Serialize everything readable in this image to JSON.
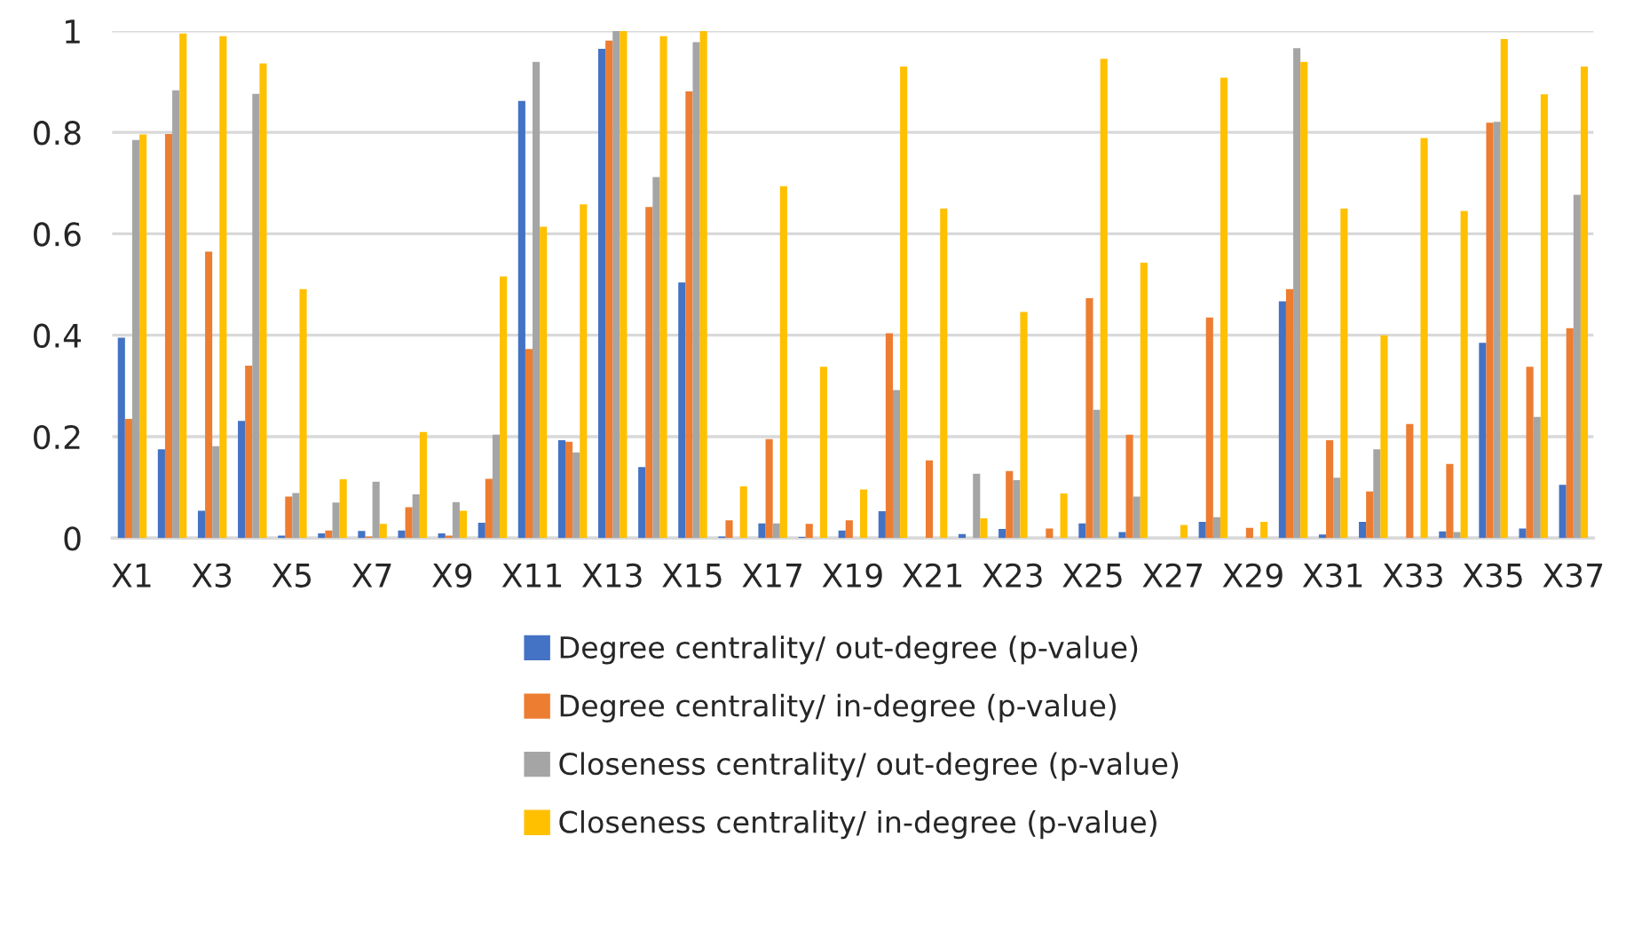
{
  "chart_data": {
    "type": "bar",
    "categories": [
      "X1",
      null,
      "X3",
      null,
      "X5",
      null,
      "X7",
      null,
      "X9",
      null,
      "X11",
      null,
      "X13",
      null,
      "X15",
      null,
      "X17",
      null,
      "X19",
      null,
      "X21",
      null,
      "X23",
      null,
      "X25",
      null,
      "X27",
      null,
      "X29",
      null,
      "X31",
      null,
      "X33",
      null,
      "X35",
      null,
      "X37"
    ],
    "series": [
      {
        "name": "Degree centrality/ out-degree (p-value)",
        "color": "#4472c4",
        "values": [
          0.395,
          0.175,
          0.054,
          0.231,
          0.005,
          0.009,
          0.014,
          0.015,
          0.009,
          0.03,
          0.862,
          0.193,
          0.965,
          0.14,
          0.504,
          0.003,
          0.029,
          0.002,
          0.015,
          0.053,
          0,
          0.008,
          0.018,
          0,
          0.029,
          0.012,
          0,
          0.032,
          0,
          0.467,
          0.007,
          0.032,
          0,
          0.013,
          0.385,
          0.019,
          0.105
        ]
      },
      {
        "name": "Degree centrality/ in-degree (p-value)",
        "color": "#ed7d31",
        "values": [
          0.235,
          0.797,
          0.565,
          0.34,
          0.082,
          0.015,
          0.003,
          0.061,
          0.005,
          0.117,
          0.373,
          0.19,
          0.981,
          0.653,
          0.881,
          0.035,
          0.195,
          0.028,
          0.035,
          0.404,
          0.153,
          0,
          0.132,
          0.019,
          0.473,
          0.204,
          0,
          0.435,
          0.02,
          0.491,
          0.193,
          0.092,
          0.225,
          0.146,
          0.819,
          0.338,
          0.414
        ]
      },
      {
        "name": "Closeness centrality/ out-degree (p-value)",
        "color": "#a5a5a5",
        "values": [
          0.785,
          0.883,
          0.181,
          0.876,
          0.089,
          0.07,
          0.111,
          0.086,
          0.071,
          0.204,
          0.939,
          0.169,
          1.0,
          0.712,
          0.978,
          null,
          0.029,
          0,
          0,
          0.292,
          0,
          0.127,
          0.114,
          0,
          0.253,
          0.082,
          null,
          0.041,
          0,
          0.966,
          0.119,
          0.175,
          null,
          0.012,
          0.821,
          0.239,
          0.677
        ]
      },
      {
        "name": "Closeness centrality/ in-degree (p-value)",
        "color": "#ffc000",
        "values": [
          0.796,
          0.995,
          0.99,
          0.936,
          0.491,
          0.116,
          0.028,
          0.209,
          0.054,
          0.516,
          0.614,
          0.658,
          1.0,
          0.99,
          1.0,
          0.102,
          0.694,
          0.338,
          0.096,
          0.93,
          0.65,
          0.039,
          0.446,
          0.088,
          0.945,
          0.543,
          0.026,
          0.908,
          0.032,
          0.939,
          0.65,
          0.4,
          0.789,
          0.645,
          0.984,
          0.875,
          0.93
        ]
      }
    ],
    "ylim": [
      0,
      1
    ],
    "yticks": [
      0,
      0.2,
      0.4,
      0.6,
      0.8,
      1
    ],
    "grid": "y",
    "legend": "bottom"
  }
}
